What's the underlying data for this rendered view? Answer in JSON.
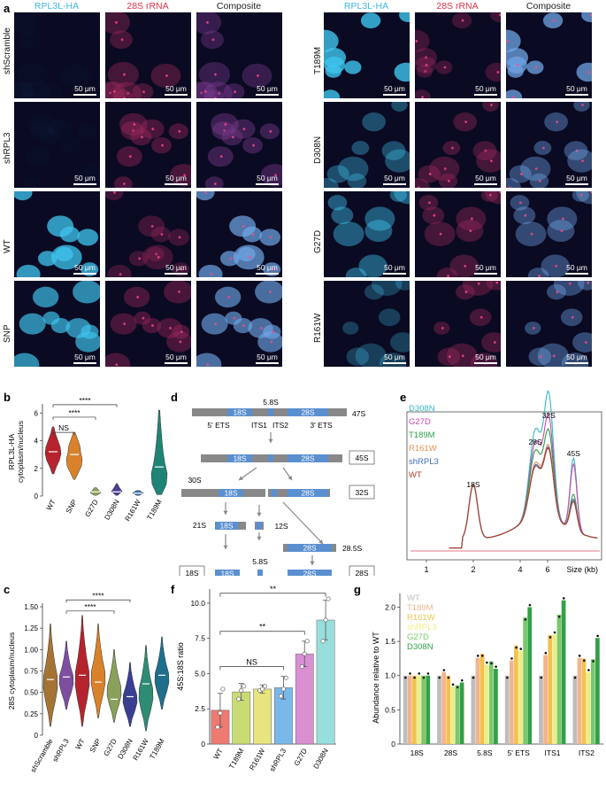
{
  "panel_letters": {
    "a": "a",
    "b": "b",
    "c": "c",
    "d": "d",
    "e": "e",
    "f": "f",
    "g": "g"
  },
  "panel_a": {
    "channels": [
      "RPL3L-HA",
      "28S rRNA",
      "Composite"
    ],
    "scale_text": "50 μm",
    "left_rows": [
      "shScramble",
      "shRPL3",
      "WT",
      "SNP"
    ],
    "right_rows": [
      "T189M",
      "D308N",
      "G27D",
      "R161W"
    ]
  },
  "panel_b": {
    "ylabel": "RPL3L-HA\ncytoplasm/nucleus",
    "yticks": [
      "0",
      "2",
      "4",
      "6"
    ],
    "categories": [
      "WT",
      "SNP",
      "G27D",
      "D308N",
      "R161W",
      "T189M"
    ],
    "colors": [
      "#b5242e",
      "#d9822b",
      "#8ba05a",
      "#4b3f94",
      "#3a6fb0",
      "#1e8476"
    ],
    "annotations": [
      "NS",
      "****",
      "****"
    ]
  },
  "panel_c": {
    "ylabel": "28S cytoplasm/nucleus",
    "yticks": [
      "0",
      "0.25",
      "0.50",
      "0.75",
      "1.00",
      "1.25",
      "1.50"
    ],
    "categories": [
      "shScramble",
      "shRPL3",
      "WT",
      "SNP",
      "G27D",
      "D308N",
      "R161W",
      "T189M"
    ],
    "colors": [
      "#a57434",
      "#7e4ea0",
      "#b5242e",
      "#d9822b",
      "#8ba05a",
      "#3a3f94",
      "#2f8c74",
      "#1e6f8c"
    ],
    "annotations": [
      "****",
      "****"
    ]
  },
  "panel_d": {
    "segments": [
      "18S",
      "5.8S",
      "28S"
    ],
    "labels": [
      "5' ETS",
      "ITS1",
      "ITS2",
      "3' ETS",
      "47S",
      "45S",
      "30S",
      "32S",
      "21S",
      "12S",
      "28.5S",
      "18S",
      "5.8S",
      "28S"
    ]
  },
  "panel_e": {
    "legend": [
      "D308N",
      "G27D",
      "T189M",
      "R161W",
      "shRPL3",
      "WT"
    ],
    "legend_colors": [
      "#37b6c6",
      "#c64aa8",
      "#2f9b4f",
      "#e8905a",
      "#3f6fb8",
      "#b0402a"
    ],
    "peak_labels": [
      "18S",
      "28S",
      "32S",
      "45S"
    ],
    "xticks": [
      "1",
      "2",
      "4",
      "6"
    ],
    "xlabel": "Size (kb)"
  },
  "chart_data": [
    {
      "type": "bar",
      "title": "",
      "ylabel": "45S:18S ratio",
      "categories": [
        "WT",
        "T189M",
        "R161W",
        "shRPL3",
        "G27D",
        "D308N"
      ],
      "values": [
        2.4,
        3.7,
        3.9,
        4.0,
        6.4,
        8.8
      ],
      "errors": [
        1.2,
        0.6,
        0.3,
        0.8,
        0.9,
        1.4
      ],
      "points": [
        [
          1.2,
          2.2,
          3.9
        ],
        [
          3.2,
          3.8,
          4.1
        ],
        [
          3.8,
          3.9,
          4.1
        ],
        [
          3.4,
          3.9,
          4.7
        ],
        [
          5.5,
          6.4,
          7.3
        ],
        [
          7.3,
          8.8,
          10.3
        ]
      ],
      "colors": [
        "#ee7a72",
        "#c9dc74",
        "#e8e580",
        "#7ab8ea",
        "#d98fd2",
        "#98dedc"
      ],
      "ylim": [
        0,
        11
      ],
      "yticks": [
        "0",
        "2.5",
        "5.0",
        "7.5",
        "10.0"
      ],
      "annotations": [
        "**",
        "**",
        "NS"
      ]
    },
    {
      "type": "bar",
      "ylabel": "Abundance relative to WT",
      "categories": [
        "18S",
        "28S",
        "5.8S",
        "5' ETS",
        "ITS1",
        "ITS2"
      ],
      "series": [
        {
          "name": "WT",
          "values": [
            1.0,
            1.0,
            1.0,
            1.0,
            1.0,
            1.0
          ]
        },
        {
          "name": "T189M",
          "values": [
            1.0,
            1.05,
            1.26,
            1.22,
            1.3,
            1.26
          ]
        },
        {
          "name": "R161W",
          "values": [
            1.0,
            1.0,
            1.32,
            1.44,
            1.59,
            1.25
          ]
        },
        {
          "name": "shRPL3",
          "values": [
            1.0,
            0.84,
            1.16,
            1.36,
            1.6,
            1.05
          ]
        },
        {
          "name": "G27D",
          "values": [
            1.0,
            0.86,
            1.21,
            1.85,
            1.89,
            1.24
          ]
        },
        {
          "name": "D308N",
          "values": [
            1.0,
            0.9,
            1.1,
            2.0,
            2.1,
            1.55
          ]
        }
      ],
      "colors": [
        "#bdbdbd",
        "#f1b48f",
        "#f2c14e",
        "#eded88",
        "#79c96b",
        "#32a048"
      ],
      "ylim": [
        0,
        2.2
      ],
      "yticks": [
        "0",
        "0.5",
        "1.0",
        "1.5",
        "2.0"
      ]
    }
  ]
}
